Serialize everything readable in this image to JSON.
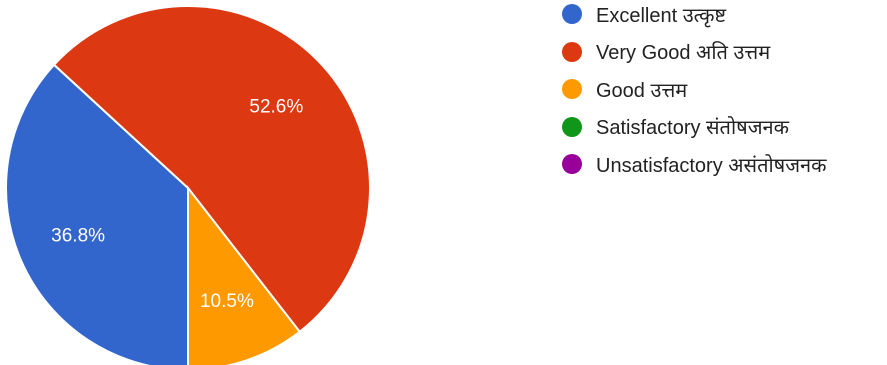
{
  "chart_data": {
    "type": "pie",
    "title": "",
    "categories": [
      "Excellent उत्कृष्ट",
      "Very Good अति उत्तम",
      "Good उत्तम",
      "Satisfactory संतोषजनक",
      "Unsatisfactory असंतोषजनक"
    ],
    "values": [
      36.8,
      52.6,
      10.5,
      0,
      0
    ],
    "slice_labels": [
      "36.8%",
      "52.6%",
      "10.5%",
      "",
      ""
    ],
    "colors": [
      "#3366cc",
      "#dc3912",
      "#ff9900",
      "#109618",
      "#990099"
    ],
    "start_angle_deg": 90,
    "direction": "clockwise",
    "legend_position": "right"
  }
}
